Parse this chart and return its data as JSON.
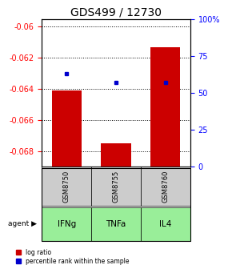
{
  "title": "GDS499 / 12730",
  "categories": [
    "IFNg",
    "TNFa",
    "IL4"
  ],
  "gsm_labels": [
    "GSM8750",
    "GSM8755",
    "GSM8760"
  ],
  "log_ratios": [
    -0.0641,
    -0.0675,
    -0.0613
  ],
  "percentile_ranks": [
    63,
    57,
    57
  ],
  "ylim_left": [
    -0.069,
    -0.0595
  ],
  "ylim_right": [
    0,
    100
  ],
  "yticks_left": [
    -0.068,
    -0.066,
    -0.064,
    -0.062,
    -0.06
  ],
  "ytick_labels_left": [
    "-0.068",
    "-0.066",
    "-0.064",
    "-0.062",
    "-0.06"
  ],
  "yticks_right": [
    0,
    25,
    50,
    75,
    100
  ],
  "ytick_labels_right": [
    "0",
    "25",
    "50",
    "75",
    "100%"
  ],
  "bar_color": "#cc0000",
  "dot_color": "#0000cc",
  "bar_width": 0.6,
  "agent_bg": "#99ee99",
  "gsm_bg": "#cccccc",
  "legend_bar_label": "log ratio",
  "legend_dot_label": "percentile rank within the sample",
  "title_fontsize": 10,
  "tick_fontsize": 7,
  "label_fontsize": 7
}
